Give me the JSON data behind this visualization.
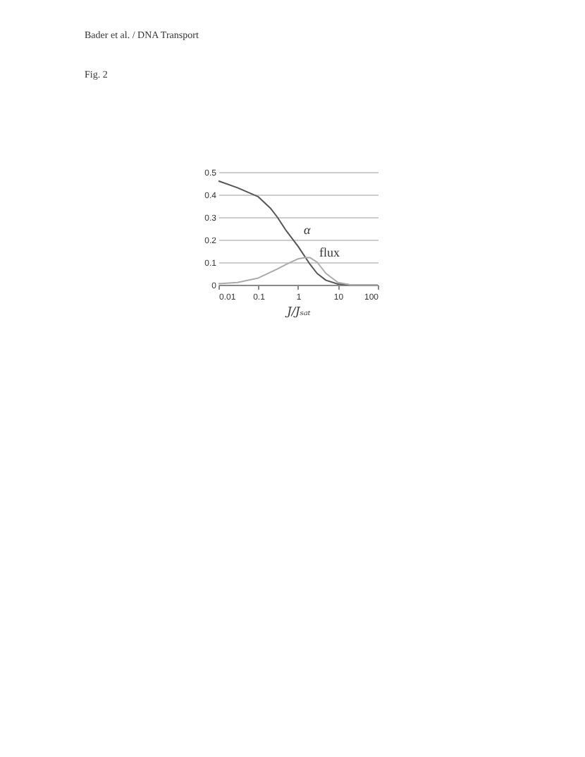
{
  "chart_data": {
    "type": "line",
    "xlabel": "J/Jₛₐₜ",
    "annotations": [
      "Bader et al. / DNA Transport",
      "Fig. 2"
    ],
    "log": "x",
    "xlim": [
      0.01,
      100
    ],
    "xticks": [
      0.01,
      0.1,
      1,
      10,
      100
    ],
    "ylim": [
      0,
      0.5
    ],
    "yticks": [
      0,
      0.1,
      0.2,
      0.3,
      0.4,
      0.5
    ],
    "grid": "y",
    "marker": "none",
    "line_style": "solid",
    "series": [
      {
        "name": "α",
        "color": "#555555",
        "x": [
          0.01,
          0.03,
          0.1,
          0.2,
          0.3,
          0.5,
          1,
          2,
          3,
          5,
          10,
          20,
          100
        ],
        "values": [
          0.46,
          0.43,
          0.39,
          0.34,
          0.3,
          0.24,
          0.17,
          0.09,
          0.05,
          0.02,
          0.003,
          0,
          0
        ]
      },
      {
        "name": "flux",
        "color": "#aaaaaa",
        "x": [
          0.01,
          0.03,
          0.1,
          0.3,
          0.5,
          1,
          1.5,
          2,
          3,
          5,
          10,
          20,
          100
        ],
        "values": [
          0.005,
          0.01,
          0.03,
          0.07,
          0.09,
          0.115,
          0.12,
          0.12,
          0.1,
          0.05,
          0.01,
          0,
          0
        ]
      }
    ]
  }
}
